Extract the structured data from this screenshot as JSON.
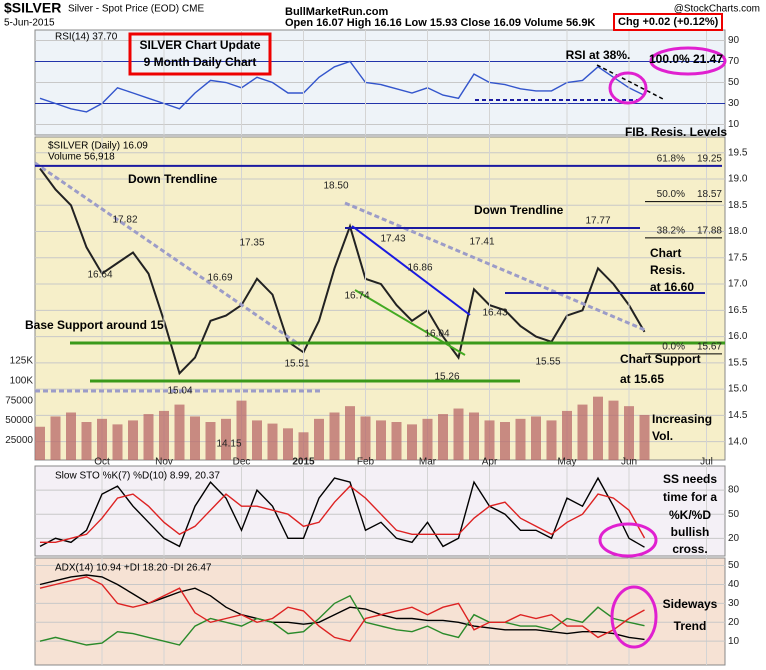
{
  "header": {
    "symbol": "$SILVER",
    "name": "Silver - Spot Price (EOD) CME",
    "date": "5-Jun-2015",
    "site": "BullMarketRun.com",
    "quote": "Open 16.07 High 16.16 Low 15.93 Close 16.09 Volume 56.9K",
    "change": "Chg +0.02 (+0.12%)",
    "credit": "@StockCharts.com"
  },
  "chart_data": [
    {
      "type": "line",
      "title": "RSI(14) 37.70",
      "ylim": [
        0,
        100
      ],
      "yticks": [
        10,
        30,
        50,
        70,
        90
      ],
      "series": [
        {
          "name": "RSI",
          "color": "#3355cc",
          "values": [
            35,
            30,
            25,
            22,
            30,
            45,
            40,
            35,
            30,
            25,
            40,
            52,
            50,
            45,
            55,
            50,
            40,
            40,
            55,
            65,
            70,
            50,
            48,
            44,
            40,
            45,
            38,
            35,
            58,
            50,
            48,
            44,
            42,
            42,
            50,
            52,
            65,
            55,
            45,
            37.7,
            null,
            null,
            null,
            null
          ]
        }
      ],
      "annotations": [
        "SILVER Chart Update",
        "9 Month Daily Chart",
        "RSI at 38%.",
        "100.0% 21.47"
      ]
    },
    {
      "type": "line",
      "title": "$SILVER (Daily) 16.09",
      "ylim": [
        13.65,
        19.8
      ],
      "yticks": [
        {
          "value": 14,
          "label": "14.0"
        },
        14.5,
        {
          "value": 15,
          "label": "15.0"
        },
        15.5,
        {
          "value": 16,
          "label": "16.0"
        },
        16.5,
        {
          "value": 17,
          "label": "17.0"
        },
        17.5,
        {
          "value": 18,
          "label": "18.0"
        },
        18.5,
        {
          "value": 19,
          "label": "19.0"
        },
        19.5
      ],
      "categories": [
        null,
        null,
        null,
        null,
        "Oct",
        null,
        null,
        null,
        "Nov",
        null,
        null,
        null,
        null,
        "Dec",
        null,
        null,
        null,
        "2015",
        null,
        null,
        null,
        "Feb",
        null,
        null,
        null,
        "Mar",
        null,
        null,
        null,
        "Apr",
        null,
        null,
        null,
        null,
        "May",
        null,
        null,
        null,
        "Jun",
        null,
        null,
        null,
        null,
        "Jul"
      ],
      "series": [
        {
          "name": "$SILVER",
          "color": "#222222",
          "values": [
            19.2,
            18.8,
            18.5,
            17.7,
            17.2,
            17.4,
            17.6,
            17.2,
            16.3,
            15.3,
            15.6,
            16.3,
            16.4,
            16.6,
            17.1,
            16.8,
            15.9,
            15.7,
            16.3,
            17.3,
            18.1,
            17.1,
            17.0,
            16.6,
            16.3,
            16.5,
            16.0,
            15.6,
            16.9,
            16.6,
            16.5,
            16.2,
            16.0,
            15.9,
            16.4,
            16.5,
            17.3,
            17.0,
            16.6,
            16.09,
            null,
            null,
            null,
            null
          ]
        }
      ],
      "fib_levels": [
        {
          "label": "61.8%",
          "value": 19.25
        },
        {
          "label": "50.0%",
          "value": 18.57
        },
        {
          "label": "38.2%",
          "value": 17.88
        },
        {
          "label": "0.0%",
          "value": 15.67
        }
      ],
      "annotations": [
        "FIB. Resis. Levels",
        "Down Trendline",
        "Down Trendline",
        "Chart",
        "Resis.",
        "at 16.60",
        "Base Support around 15",
        "Chart Support",
        "at 15.65",
        "Increasing",
        "Vol.",
        "17.82",
        "16.64",
        "18.50",
        "17.35",
        "16.69",
        "15.51",
        "15.04",
        "14.15",
        "17.43",
        "16.86",
        "16.74",
        "16.04",
        "15.26",
        "17.41",
        "16.43",
        "15.55",
        "17.77"
      ]
    },
    {
      "type": "bar",
      "title": "Volume 56,918",
      "ylim": [
        0,
        408000
      ],
      "color": "#b86868",
      "yticks": [
        25000,
        50000,
        75000,
        {
          "value": 100000,
          "label": "100K"
        },
        {
          "value": 125000,
          "label": "125K"
        }
      ],
      "values": [
        42000,
        55000,
        60000,
        48000,
        52000,
        45000,
        50000,
        58000,
        62000,
        70000,
        55000,
        48000,
        52000,
        75000,
        50000,
        46000,
        40000,
        35000,
        52000,
        60000,
        68000,
        55000,
        50000,
        48000,
        45000,
        52000,
        58000,
        65000,
        60000,
        50000,
        48000,
        52000,
        55000,
        50000,
        62000,
        70000,
        80000,
        75000,
        68000,
        56918,
        null,
        null,
        null,
        null
      ]
    },
    {
      "type": "line",
      "title": "Slow STO %K(7) %D(10) 8.99, 20.37",
      "ylim": [
        -2,
        110
      ],
      "yticks": [
        20,
        50,
        80
      ],
      "series": [
        {
          "name": "%K",
          "color": "#000000",
          "values": [
            10,
            20,
            15,
            30,
            75,
            85,
            60,
            40,
            20,
            10,
            60,
            90,
            70,
            30,
            80,
            60,
            20,
            20,
            70,
            95,
            90,
            30,
            40,
            20,
            15,
            40,
            10,
            20,
            90,
            60,
            50,
            30,
            30,
            20,
            70,
            60,
            95,
            60,
            20,
            8.99,
            null,
            null,
            null,
            null
          ]
        },
        {
          "name": "%D",
          "color": "#dd2222",
          "values": [
            15,
            15,
            20,
            25,
            45,
            70,
            75,
            60,
            40,
            25,
            35,
            55,
            75,
            60,
            60,
            55,
            50,
            35,
            40,
            65,
            85,
            70,
            50,
            30,
            25,
            25,
            25,
            25,
            45,
            60,
            65,
            45,
            35,
            25,
            40,
            50,
            75,
            70,
            55,
            20.37,
            null,
            null,
            null,
            null
          ]
        }
      ],
      "annotations": [
        "SS needs",
        "time for a",
        "%K/%D",
        "bullish",
        "cross."
      ]
    },
    {
      "type": "line",
      "title": "ADX(14) 10.94 +DI 18.20 -DI 26.47",
      "ylim": [
        -2.6,
        54
      ],
      "yticks": [
        10,
        20,
        30,
        40,
        50
      ],
      "series": [
        {
          "name": "ADX",
          "color": "#000000",
          "values": [
            40,
            42,
            44,
            45,
            44,
            40,
            35,
            30,
            33,
            36,
            38,
            34,
            28,
            24,
            22,
            20,
            20,
            19,
            20,
            24,
            28,
            27,
            24,
            22,
            22,
            21,
            21,
            20,
            18,
            17,
            16,
            16,
            16,
            15,
            14,
            15,
            15,
            14,
            12,
            10.94,
            null,
            null,
            null,
            null
          ]
        },
        {
          "name": "+DI",
          "color": "#2a8a2a",
          "values": [
            10,
            12,
            10,
            8,
            9,
            15,
            14,
            12,
            10,
            8,
            18,
            22,
            20,
            18,
            22,
            20,
            14,
            15,
            22,
            30,
            34,
            20,
            18,
            16,
            15,
            18,
            14,
            12,
            24,
            20,
            20,
            18,
            18,
            16,
            22,
            20,
            28,
            22,
            20,
            18.2,
            null,
            null,
            null,
            null
          ]
        },
        {
          "name": "-DI",
          "color": "#dd2222",
          "values": [
            38,
            40,
            42,
            44,
            40,
            30,
            28,
            30,
            34,
            38,
            25,
            20,
            22,
            24,
            20,
            22,
            28,
            26,
            18,
            12,
            10,
            22,
            24,
            26,
            28,
            24,
            28,
            30,
            16,
            20,
            20,
            24,
            22,
            24,
            18,
            18,
            12,
            16,
            22,
            26.47,
            null,
            null,
            null,
            null
          ]
        }
      ],
      "annotations": [
        "Sideways",
        "Trend"
      ]
    }
  ]
}
